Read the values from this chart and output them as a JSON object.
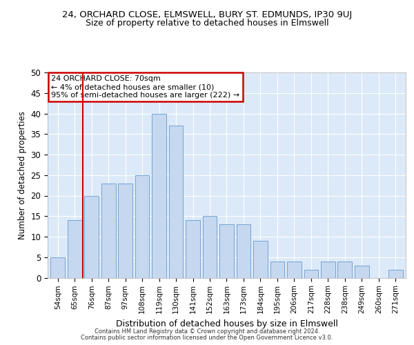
{
  "title1": "24, ORCHARD CLOSE, ELMSWELL, BURY ST. EDMUNDS, IP30 9UJ",
  "title2": "Size of property relative to detached houses in Elmswell",
  "xlabel": "Distribution of detached houses by size in Elmswell",
  "ylabel": "Number of detached properties",
  "categories": [
    "54sqm",
    "65sqm",
    "76sqm",
    "87sqm",
    "97sqm",
    "108sqm",
    "119sqm",
    "130sqm",
    "141sqm",
    "152sqm",
    "163sqm",
    "173sqm",
    "184sqm",
    "195sqm",
    "206sqm",
    "217sqm",
    "228sqm",
    "238sqm",
    "249sqm",
    "260sqm",
    "271sqm"
  ],
  "values": [
    5,
    14,
    20,
    23,
    23,
    25,
    40,
    37,
    14,
    15,
    13,
    13,
    9,
    4,
    4,
    2,
    4,
    4,
    3,
    0,
    2
  ],
  "bar_color": "#c5d8f0",
  "bar_edge_color": "#6699cc",
  "annotation_title": "24 ORCHARD CLOSE: 70sqm",
  "annotation_line1": "← 4% of detached houses are smaller (10)",
  "annotation_line2": "95% of semi-detached houses are larger (222) →",
  "annotation_box_color": "#ffffff",
  "annotation_box_edge": "#cc0000",
  "red_line_color": "#cc0000",
  "footer1": "Contains HM Land Registry data © Crown copyright and database right 2024.",
  "footer2": "Contains public sector information licensed under the Open Government Licence v3.0.",
  "ylim": [
    0,
    50
  ],
  "yticks": [
    0,
    5,
    10,
    15,
    20,
    25,
    30,
    35,
    40,
    45,
    50
  ],
  "background_color": "#dce9f8",
  "grid_color": "#ffffff"
}
